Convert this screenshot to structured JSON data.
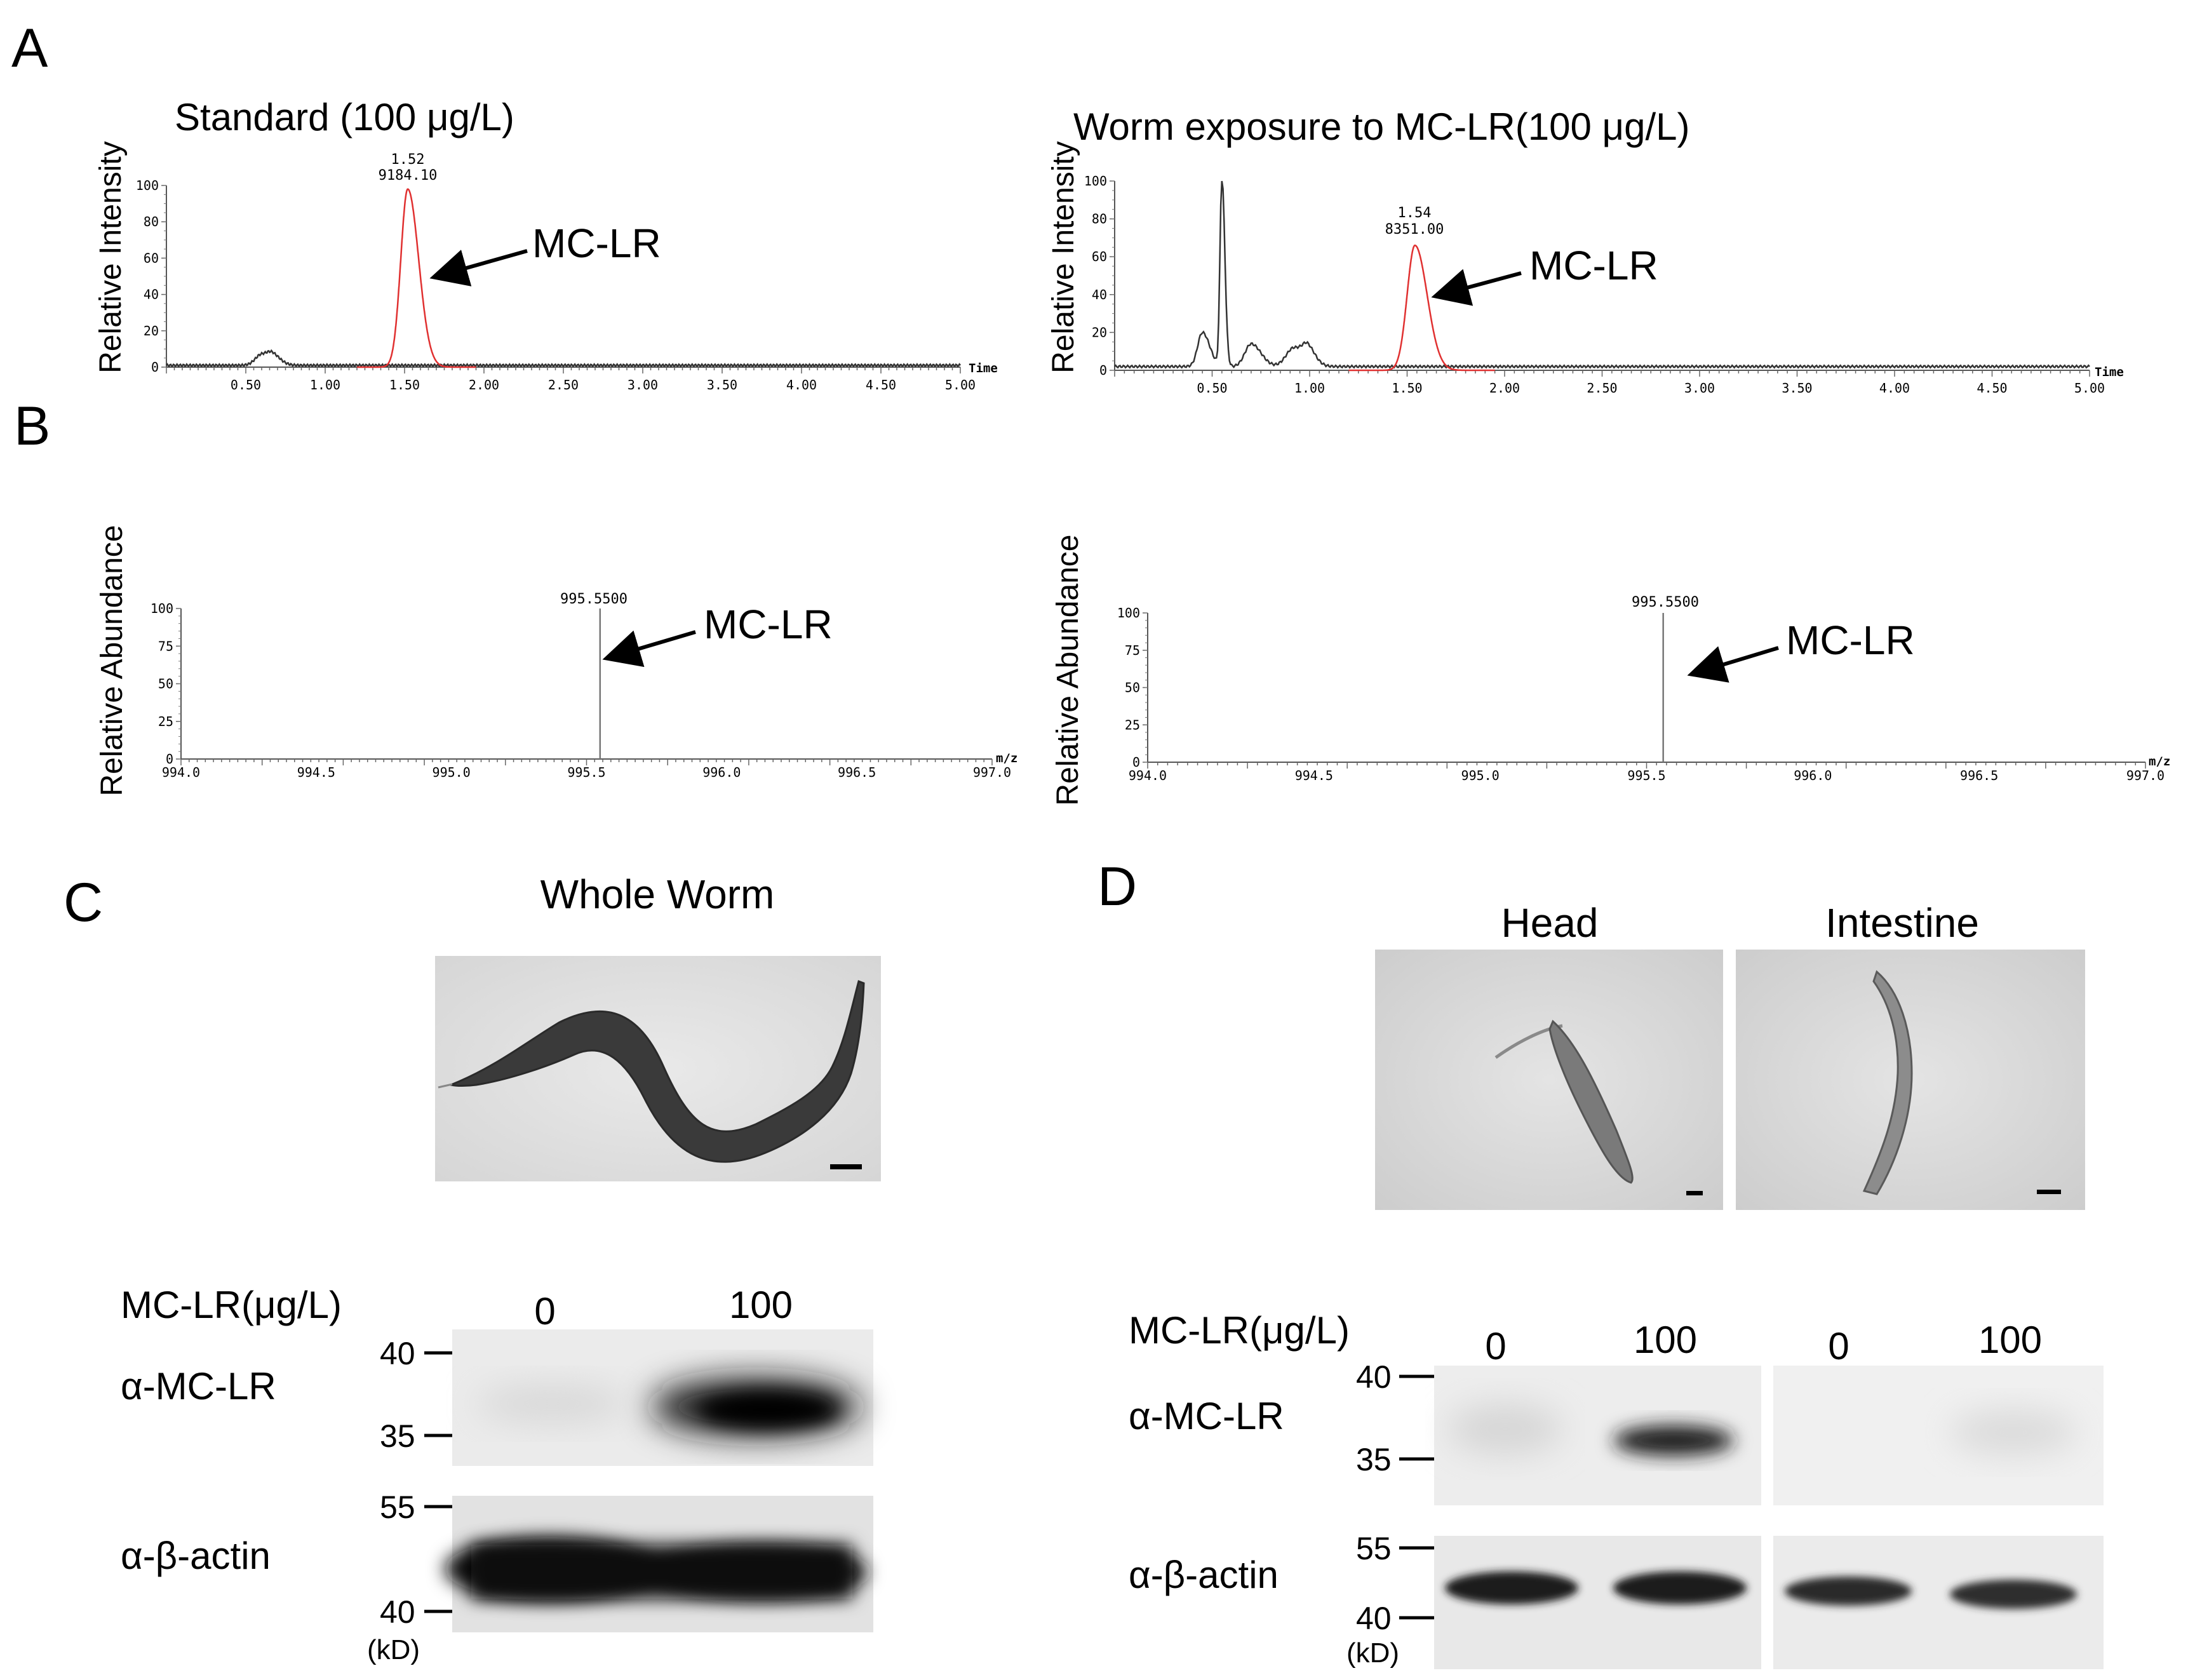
{
  "panels": {
    "A": {
      "letter": "A",
      "left": {
        "title": "Standard (100 μg/L)",
        "ylabel": "Relative Intensity",
        "annotation": "MC-LR",
        "peak_label_rt": "1.52",
        "peak_label_area": "9184.10",
        "axis_end_label": "Time"
      },
      "right": {
        "title": "Worm exposure to MC-LR(100 μg/L)",
        "ylabel": "Relative Intensity",
        "annotation": "MC-LR",
        "peak_label_rt": "1.54",
        "peak_label_area": "8351.00",
        "axis_end_label": "Time"
      }
    },
    "B": {
      "letter": "B",
      "left": {
        "ylabel": "Relative Abundance",
        "annotation": "MC-LR",
        "peak_label": "995.5500",
        "axis_end_label": "m/z"
      },
      "right": {
        "ylabel": "Relative Abundance",
        "annotation": "MC-LR",
        "peak_label": "995.5500",
        "axis_end_label": "m/z"
      }
    },
    "C": {
      "letter": "C",
      "image_title": "Whole Worm",
      "blot": {
        "treatment_label": "MC-LR(μg/L)",
        "lanes": [
          "0",
          "100"
        ],
        "row1_label": "α-MC-LR",
        "row2_label": "α-β-actin",
        "markers_top": [
          "40",
          "35"
        ],
        "markers_bottom": [
          "55",
          "40"
        ],
        "unit": "(kD)"
      }
    },
    "D": {
      "letter": "D",
      "image_titles": [
        "Head",
        "Intestine"
      ],
      "blot": {
        "treatment_label": "MC-LR(μg/L)",
        "lanes": [
          "0",
          "100",
          "0",
          "100"
        ],
        "row1_label": "α-MC-LR",
        "row2_label": "α-β-actin",
        "markers_top": [
          "40",
          "35"
        ],
        "markers_bottom": [
          "55",
          "40"
        ],
        "unit": "(kD)"
      }
    }
  },
  "chart_data": [
    {
      "type": "line",
      "id": "A-left",
      "title": "Standard (100 μg/L)",
      "ylabel": "Relative Intensity",
      "xlabel": "Time",
      "xlim": [
        0,
        5.0
      ],
      "ylim": [
        0,
        100
      ],
      "xticks": [
        "0.50",
        "1.00",
        "1.50",
        "2.00",
        "2.50",
        "3.00",
        "3.50",
        "4.00",
        "4.50",
        "5.00"
      ],
      "yticks": [
        "0",
        "20",
        "40",
        "60",
        "80",
        "100"
      ],
      "series": [
        {
          "name": "",
          "color": "#333333",
          "peaks": [
            [
              0.6,
              6,
              0.05
            ],
            [
              0.67,
              4,
              0.04
            ]
          ],
          "baseline": 1
        },
        {
          "name": "",
          "color": "#e03030",
          "peaks": [
            [
              1.52,
              98,
              0.055
            ]
          ],
          "baseline": 0
        }
      ],
      "annotations": [
        {
          "text": "MC-LR",
          "x": 1.52,
          "y": 98
        }
      ]
    },
    {
      "type": "line",
      "id": "A-right",
      "title": "Worm exposure to MC-LR(100 μg/L)",
      "ylabel": "Relative Intensity",
      "xlabel": "Time",
      "xlim": [
        0,
        5.0
      ],
      "ylim": [
        0,
        100
      ],
      "xticks": [
        "0.50",
        "1.00",
        "1.50",
        "2.00",
        "2.50",
        "3.00",
        "3.50",
        "4.00",
        "4.50",
        "5.00"
      ],
      "yticks": [
        "0",
        "20",
        "40",
        "60",
        "80",
        "100"
      ],
      "series": [
        {
          "name": "",
          "color": "#333333",
          "peaks": [
            [
              0.45,
              18,
              0.03
            ],
            [
              0.55,
              100,
              0.012
            ],
            [
              0.7,
              12,
              0.04
            ],
            [
              0.92,
              10,
              0.05
            ],
            [
              0.99,
              7,
              0.03
            ]
          ],
          "baseline": 2
        },
        {
          "name": "",
          "color": "#e03030",
          "peaks": [
            [
              1.54,
              66,
              0.05
            ]
          ],
          "baseline": 0
        }
      ],
      "annotations": [
        {
          "text": "MC-LR",
          "x": 1.54,
          "y": 66
        }
      ]
    },
    {
      "type": "bar",
      "id": "B-left",
      "ylabel": "Relative Abundance",
      "xlabel": "m/z",
      "xlim": [
        994.0,
        997.0
      ],
      "ylim": [
        0,
        100
      ],
      "xticks": [
        "994.0",
        "994.5",
        "995.0",
        "995.5",
        "996.0",
        "996.5",
        "997.0"
      ],
      "yticks": [
        "0",
        "25",
        "50",
        "75",
        "100"
      ],
      "x": [
        995.55
      ],
      "values": [
        100
      ],
      "annotations": [
        {
          "text": "MC-LR",
          "x": 995.55,
          "y": 100
        }
      ]
    },
    {
      "type": "bar",
      "id": "B-right",
      "ylabel": "Relative Abundance",
      "xlabel": "m/z",
      "xlim": [
        994.0,
        997.0
      ],
      "ylim": [
        0,
        100
      ],
      "xticks": [
        "994.0",
        "994.5",
        "995.0",
        "995.5",
        "996.0",
        "996.5",
        "997.0"
      ],
      "yticks": [
        "0",
        "25",
        "50",
        "75",
        "100"
      ],
      "x": [
        995.55
      ],
      "values": [
        100
      ],
      "annotations": [
        {
          "text": "MC-LR",
          "x": 995.55,
          "y": 100
        }
      ]
    }
  ]
}
